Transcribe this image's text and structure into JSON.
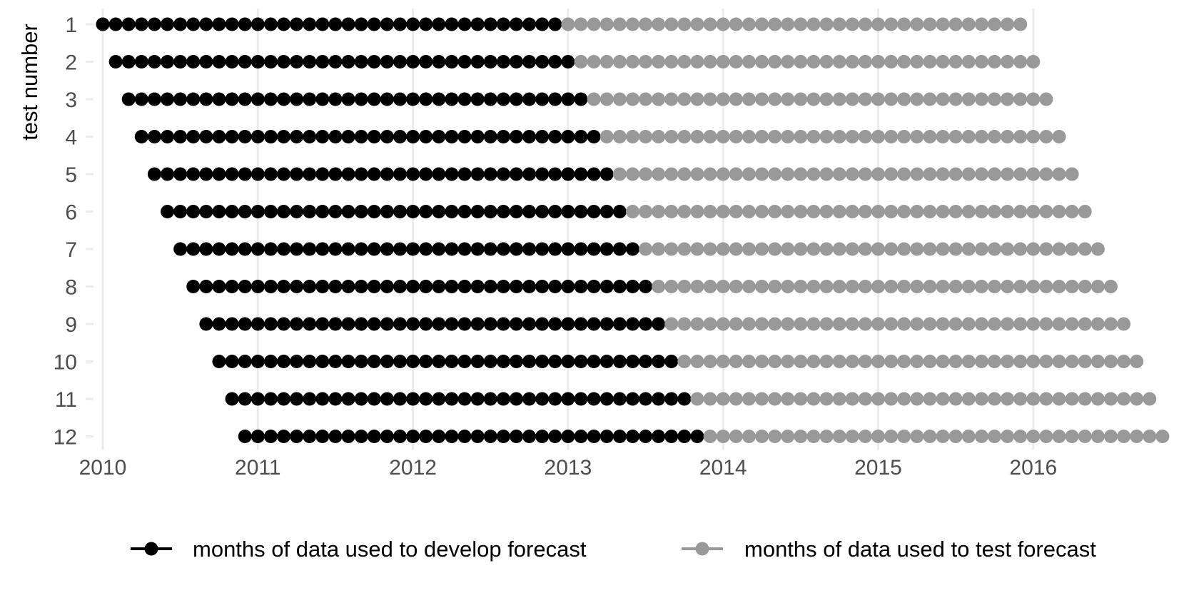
{
  "chart_data": {
    "type": "scatter",
    "title": "",
    "xlabel": "",
    "ylabel": "test number",
    "x_unit": "year",
    "xlim": [
      2010,
      2016.9
    ],
    "x_ticks": [
      "2010",
      "2011",
      "2012",
      "2013",
      "2014",
      "2015",
      "2016"
    ],
    "y_categories": [
      "1",
      "2",
      "3",
      "4",
      "5",
      "6",
      "7",
      "8",
      "9",
      "10",
      "11",
      "12"
    ],
    "grid": "vertical major gridlines only",
    "legend": "bottom",
    "series": [
      {
        "name": "months of data used to develop forecast",
        "color": "#000000",
        "description": "monthly points (36 per test)",
        "ranges": [
          {
            "test": 1,
            "start": "2010-01",
            "end": "2012-12"
          },
          {
            "test": 2,
            "start": "2010-02",
            "end": "2013-01"
          },
          {
            "test": 3,
            "start": "2010-03",
            "end": "2013-02"
          },
          {
            "test": 4,
            "start": "2010-04",
            "end": "2013-03"
          },
          {
            "test": 5,
            "start": "2010-05",
            "end": "2013-04"
          },
          {
            "test": 6,
            "start": "2010-06",
            "end": "2013-05"
          },
          {
            "test": 7,
            "start": "2010-07",
            "end": "2013-06"
          },
          {
            "test": 8,
            "start": "2010-08",
            "end": "2013-07"
          },
          {
            "test": 9,
            "start": "2010-09",
            "end": "2013-08"
          },
          {
            "test": 10,
            "start": "2010-10",
            "end": "2013-09"
          },
          {
            "test": 11,
            "start": "2010-11",
            "end": "2013-10"
          },
          {
            "test": 12,
            "start": "2010-12",
            "end": "2013-11"
          }
        ]
      },
      {
        "name": "months of data used to test forecast",
        "color": "#999999",
        "description": "monthly points (36 per test)",
        "ranges": [
          {
            "test": 1,
            "start": "2013-01",
            "end": "2015-12"
          },
          {
            "test": 2,
            "start": "2013-02",
            "end": "2016-01"
          },
          {
            "test": 3,
            "start": "2013-03",
            "end": "2016-02"
          },
          {
            "test": 4,
            "start": "2013-04",
            "end": "2016-03"
          },
          {
            "test": 5,
            "start": "2013-05",
            "end": "2016-04"
          },
          {
            "test": 6,
            "start": "2013-06",
            "end": "2016-05"
          },
          {
            "test": 7,
            "start": "2013-07",
            "end": "2016-06"
          },
          {
            "test": 8,
            "start": "2013-08",
            "end": "2016-07"
          },
          {
            "test": 9,
            "start": "2013-09",
            "end": "2016-08"
          },
          {
            "test": 10,
            "start": "2013-10",
            "end": "2016-09"
          },
          {
            "test": 11,
            "start": "2013-11",
            "end": "2016-10"
          },
          {
            "test": 12,
            "start": "2013-12",
            "end": "2016-11"
          }
        ]
      }
    ]
  }
}
